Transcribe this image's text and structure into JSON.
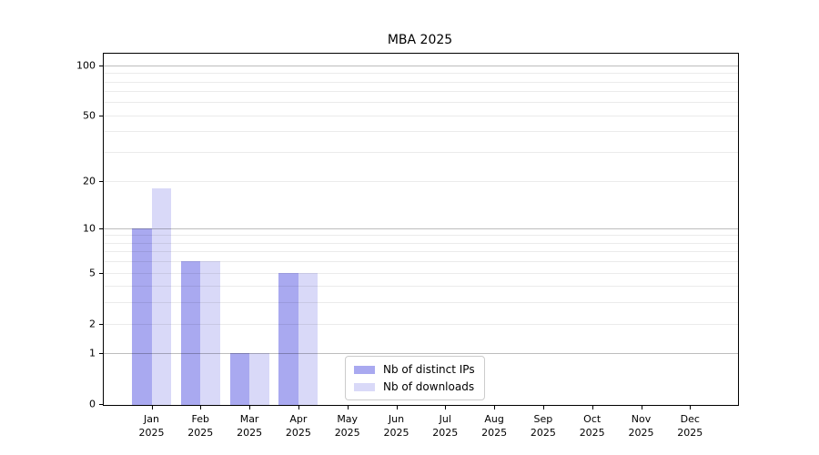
{
  "figure": {
    "background": "#ffffff"
  },
  "chart_data": {
    "type": "bar",
    "title": "MBA 2025",
    "year": "2025",
    "categories": [
      "Jan",
      "Feb",
      "Mar",
      "Apr",
      "May",
      "Jun",
      "Jul",
      "Aug",
      "Sep",
      "Oct",
      "Nov",
      "Dec"
    ],
    "series": [
      {
        "name": "Nb of distinct IPs",
        "color": "#a9a9f0",
        "values": [
          10,
          6,
          1,
          5,
          0,
          0,
          0,
          0,
          0,
          0,
          0,
          0
        ]
      },
      {
        "name": "Nb of downloads",
        "color": "#d9d9f8",
        "values": [
          18,
          6,
          1,
          5,
          0,
          0,
          0,
          0,
          0,
          0,
          0,
          0
        ]
      }
    ],
    "yscale": "log1p",
    "ylim": [
      0,
      117
    ],
    "y_tick_labels": [
      "0",
      "1",
      "2",
      "5",
      "10",
      "20",
      "50",
      "100"
    ],
    "y_ticks": [
      0,
      1,
      2,
      5,
      10,
      20,
      50,
      100
    ],
    "y_major_gridlines": [
      1,
      10,
      100
    ],
    "y_minor_gridlines": [
      2,
      3,
      4,
      5,
      6,
      7,
      8,
      9,
      20,
      30,
      40,
      50,
      60,
      70,
      80,
      90
    ],
    "grid": true,
    "legend_position": "lower center"
  }
}
